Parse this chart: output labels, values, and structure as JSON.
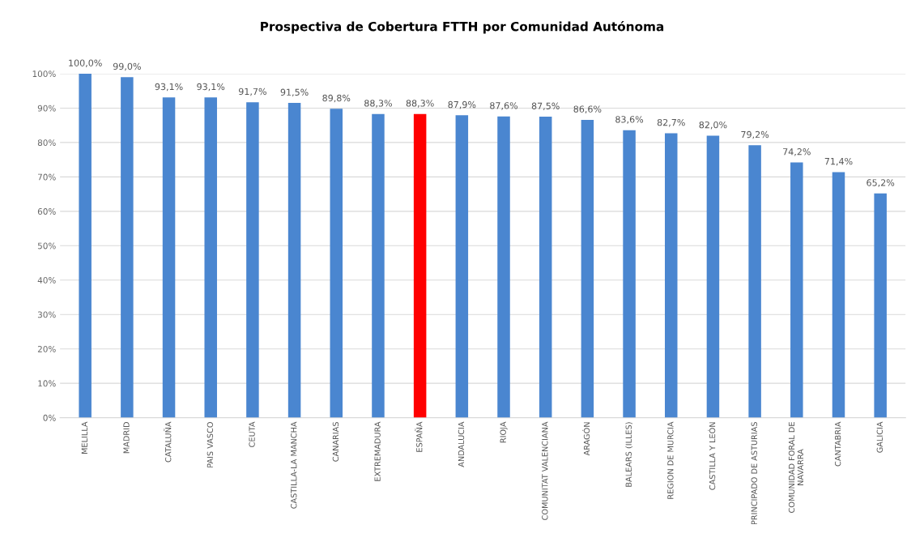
{
  "chart_data": {
    "type": "bar",
    "title": "Prospectiva de Cobertura FTTH por Comunidad Autónoma",
    "categories": [
      "MELILLA",
      "MADRID",
      "CATALUÑA",
      "PAIS VASCO",
      "CEUTA",
      "CASTILLA-LA MANCHA",
      "CANARIAS",
      "EXTREMADURA",
      "ESPAÑA",
      "ANDALUCIA",
      "RIOJA",
      "COMUNITAT VALENCIANA",
      "ARAGÓN",
      "BALEARS (ILLES)",
      "REGION DE MURCIA",
      "CASTILLA Y LEÓN",
      "PRINCIPADO DE ASTURIAS",
      "COMUNIDAD FORAL DE\nNAVARRA",
      "CANTABRIA",
      "GALICIA"
    ],
    "values": [
      100.0,
      99.0,
      93.1,
      93.1,
      91.7,
      91.5,
      89.8,
      88.3,
      88.3,
      87.9,
      87.6,
      87.5,
      86.6,
      83.6,
      82.7,
      82.0,
      79.2,
      74.2,
      71.4,
      65.2
    ],
    "colors": [
      "#4a86d0",
      "#4a86d0",
      "#4a86d0",
      "#4a86d0",
      "#4a86d0",
      "#4a86d0",
      "#4a86d0",
      "#4a86d0",
      "#ff0000",
      "#4a86d0",
      "#4a86d0",
      "#4a86d0",
      "#4a86d0",
      "#4a86d0",
      "#4a86d0",
      "#4a86d0",
      "#4a86d0",
      "#4a86d0",
      "#4a86d0",
      "#4a86d0"
    ],
    "value_labels": [
      "100,0%",
      "99,0%",
      "93,1%",
      "93,1%",
      "91,7%",
      "91,5%",
      "89,8%",
      "88,3%",
      "88,3%",
      "87,9%",
      "87,6%",
      "87,5%",
      "86,6%",
      "83,6%",
      "82,7%",
      "82,0%",
      "79,2%",
      "74,2%",
      "71,4%",
      "65,2%"
    ],
    "ylim": [
      0,
      100
    ],
    "yticks": [
      {
        "value": 0,
        "label": "0%"
      },
      {
        "value": 10,
        "label": "10%"
      },
      {
        "value": 20,
        "label": "20%"
      },
      {
        "value": 30,
        "label": "30%"
      },
      {
        "value": 40,
        "label": "40%"
      },
      {
        "value": 50,
        "label": "50%"
      },
      {
        "value": 60,
        "label": "60%"
      },
      {
        "value": 70,
        "label": "70%"
      },
      {
        "value": 80,
        "label": "80%"
      },
      {
        "value": 90,
        "label": "90%"
      },
      {
        "value": 100,
        "label": "100%"
      }
    ],
    "grid": "y",
    "legend": false
  }
}
